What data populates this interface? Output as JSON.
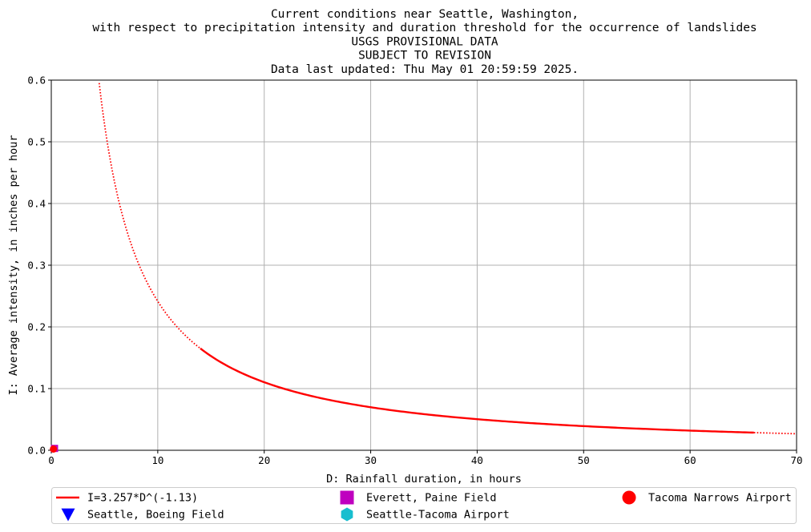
{
  "chart_data": {
    "type": "line",
    "title_lines": [
      "Current conditions near Seattle, Washington,",
      "with respect to precipitation intensity and duration threshold for the occurrence of landslides",
      "USGS PROVISIONAL DATA",
      "SUBJECT TO REVISION",
      "Data last updated: Thu May 01 20:59:59 2025."
    ],
    "xlabel": "D: Rainfall duration, in hours",
    "ylabel": "I: Average intensity, in inches per hour",
    "xlim": [
      0,
      70
    ],
    "ylim": [
      0,
      0.6
    ],
    "x_ticks": [
      0,
      10,
      20,
      30,
      40,
      50,
      60,
      70
    ],
    "y_ticks": [
      0.0,
      0.1,
      0.2,
      0.3,
      0.4,
      0.5,
      0.6
    ],
    "x_tick_labels": [
      "0",
      "10",
      "20",
      "30",
      "40",
      "50",
      "60",
      "70"
    ],
    "y_tick_labels": [
      "0.0",
      "0.1",
      "0.2",
      "0.3",
      "0.4",
      "0.5",
      "0.6"
    ],
    "grid": true,
    "legend_position": "bottom",
    "threshold": {
      "name": "I=3.257*D^(-1.13)",
      "coefficient": 3.257,
      "exponent": -1.13,
      "solid_range": [
        14,
        66
      ],
      "dotted_ranges": [
        [
          4.5,
          14
        ],
        [
          66,
          70
        ]
      ],
      "color": "#ff0000"
    },
    "series": [
      {
        "name": "Everett, Paine Field",
        "marker": "square",
        "color": "#bf00bf",
        "points": [
          [
            0.3,
            0.003
          ]
        ]
      },
      {
        "name": "Tacoma Narrows Airport",
        "marker": "circle",
        "color": "#ff0000",
        "points": [
          [
            0.2,
            0.002
          ]
        ]
      },
      {
        "name": "Seattle, Boeing Field",
        "marker": "triangle-down",
        "color": "#0000ff",
        "points": []
      },
      {
        "name": "Seattle-Tacoma Airport",
        "marker": "hexagon",
        "color": "#17becf",
        "points": []
      }
    ],
    "legend_order": [
      "I=3.257*D^(-1.13)",
      "Everett, Paine Field",
      "Tacoma Narrows Airport",
      "Seattle, Boeing Field",
      "Seattle-Tacoma Airport"
    ]
  }
}
